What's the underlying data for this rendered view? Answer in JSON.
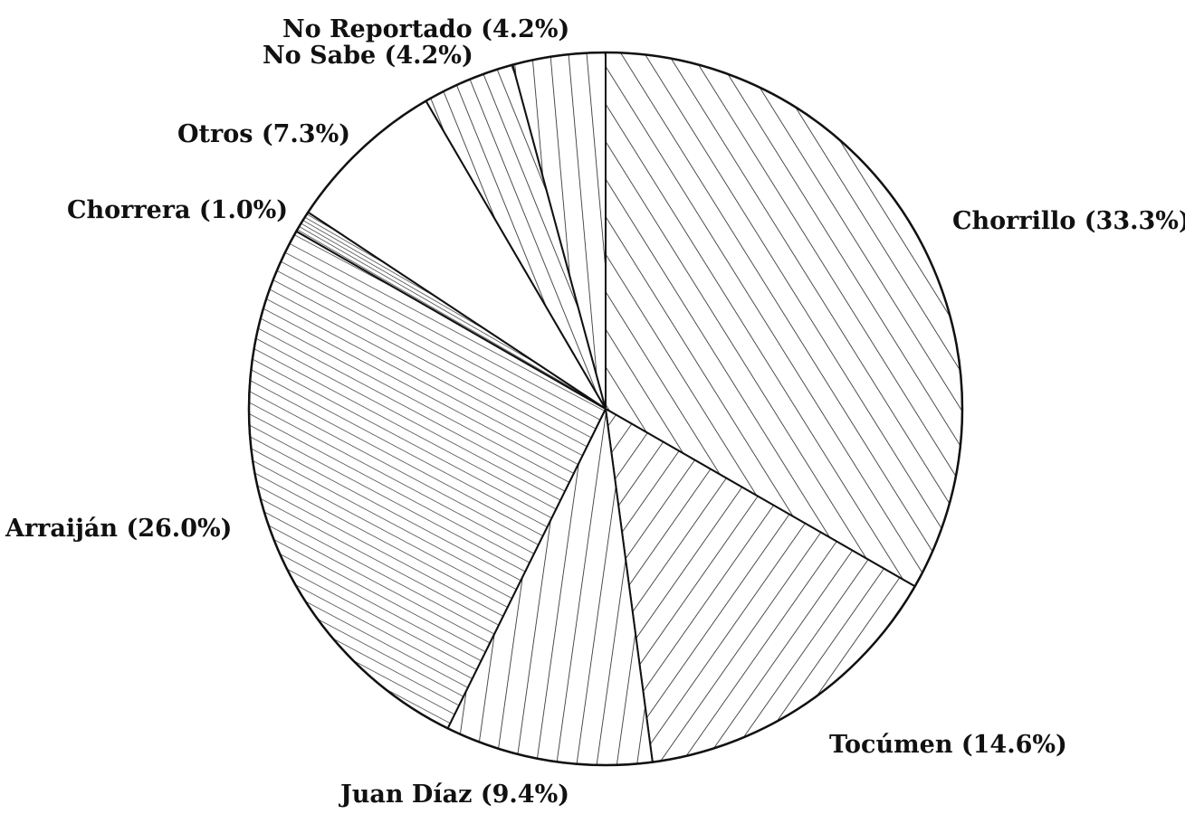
{
  "chart_data": {
    "type": "pie",
    "title": "",
    "slices": [
      {
        "label": "Chorrillo (33.3%)",
        "name": "Chorrillo",
        "value": 33.3,
        "pattern": "diag-wide"
      },
      {
        "label": "Tocúmen (14.6%)",
        "name": "Tocúmen",
        "value": 14.6,
        "pattern": "diag-back"
      },
      {
        "label": "Juan Díaz (9.4%)",
        "name": "Juan Díaz",
        "value": 9.4,
        "pattern": "near-vertical"
      },
      {
        "label": "Arraiján (26.0%)",
        "name": "Arraiján",
        "value": 26.0,
        "pattern": "diag-dense"
      },
      {
        "label": "Chorrera (1.0%)",
        "name": "Chorrera",
        "value": 1.0,
        "pattern": "dense"
      },
      {
        "label": "Otros (7.3%)",
        "name": "Otros",
        "value": 7.3,
        "pattern": "blank"
      },
      {
        "label": "No Sabe (4.2%)",
        "name": "No Sabe",
        "value": 4.2,
        "pattern": "diag-steep"
      },
      {
        "label": "No Reportado (4.2%)",
        "name": "No Reportado",
        "value": 4.2,
        "pattern": "vertical"
      }
    ]
  }
}
